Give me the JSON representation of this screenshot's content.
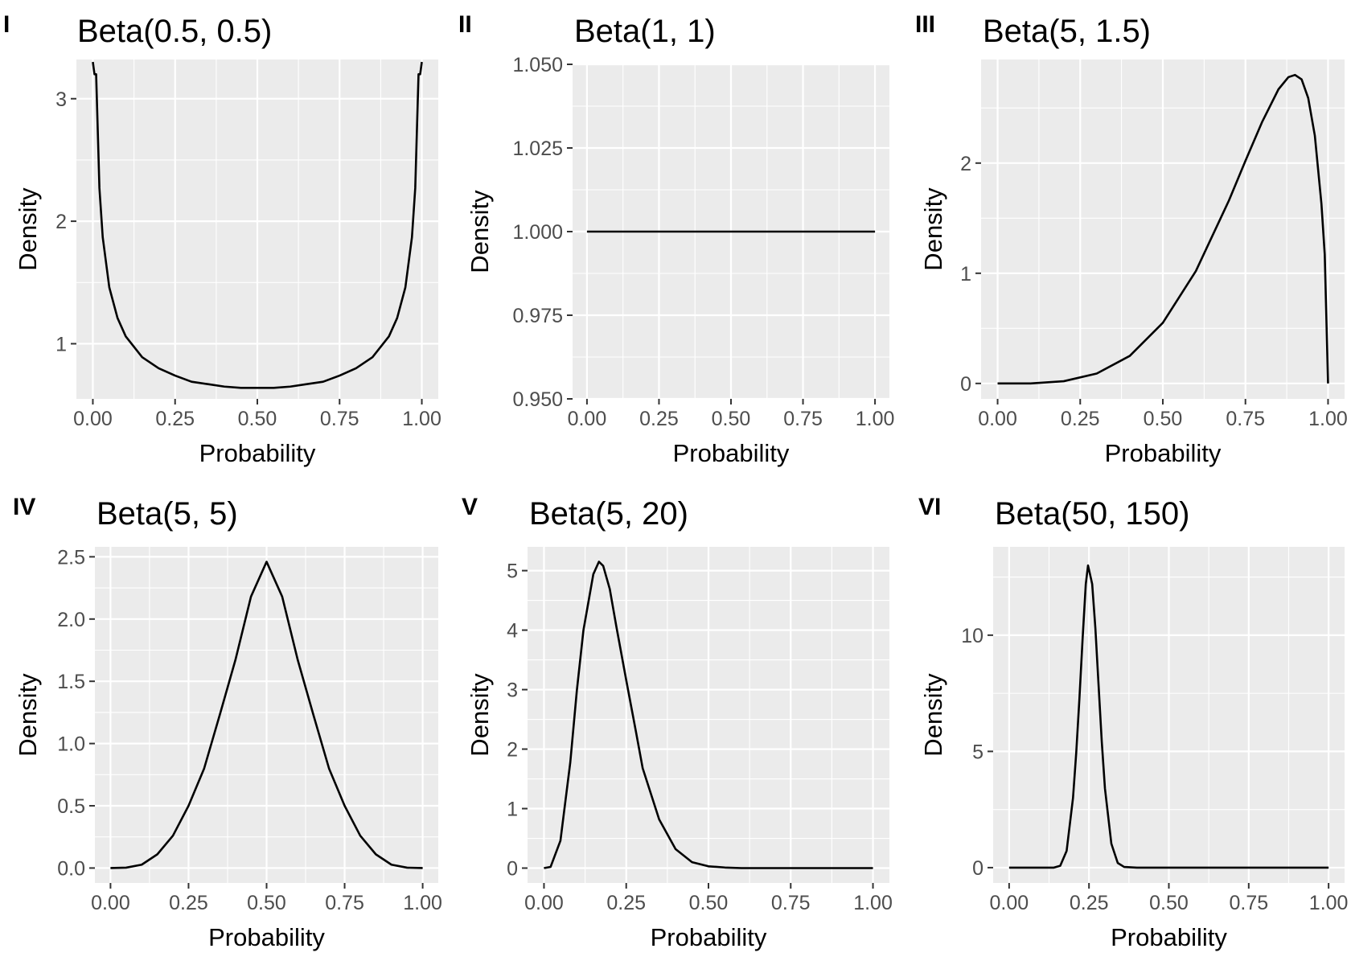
{
  "chart_data": [
    {
      "type": "line",
      "panel_label": "I",
      "title": "Beta(0.5, 0.5)",
      "distribution": {
        "alpha": 0.5,
        "beta": 0.5
      },
      "xlabel": "Probability",
      "ylabel": "Density",
      "xlim": [
        -0.05,
        1.05
      ],
      "ylim": [
        0.55,
        3.32
      ],
      "x_ticks": [
        0,
        0.25,
        0.5,
        0.75,
        1
      ],
      "x_tick_labels": [
        "0.00",
        "0.25",
        "0.50",
        "0.75",
        "1.00"
      ],
      "y_ticks": [
        1,
        2,
        3
      ],
      "y_tick_labels": [
        "1",
        "2",
        "3"
      ],
      "series": [
        {
          "x": [
            0,
            0.005,
            0.01,
            0.02,
            0.03,
            0.05,
            0.075,
            0.1,
            0.15,
            0.2,
            0.25,
            0.3,
            0.35,
            0.4,
            0.45,
            0.5,
            0.55,
            0.6,
            0.65,
            0.7,
            0.75,
            0.8,
            0.85,
            0.9,
            0.925,
            0.95,
            0.97,
            0.98,
            0.99,
            0.995,
            1
          ],
          "values": [
            3.3,
            3.2,
            3.2,
            2.27,
            1.87,
            1.46,
            1.21,
            1.06,
            0.89,
            0.8,
            0.74,
            0.69,
            0.67,
            0.65,
            0.64,
            0.64,
            0.64,
            0.65,
            0.67,
            0.69,
            0.74,
            0.8,
            0.89,
            1.06,
            1.21,
            1.46,
            1.87,
            2.27,
            3.2,
            3.2,
            3.3
          ]
        }
      ]
    },
    {
      "type": "line",
      "panel_label": "II",
      "title": "Beta(1, 1)",
      "distribution": {
        "alpha": 1,
        "beta": 1
      },
      "xlabel": "Probability",
      "ylabel": "Density",
      "xlim": [
        -0.05,
        1.05
      ],
      "ylim": [
        0.95,
        1.05
      ],
      "x_ticks": [
        0,
        0.25,
        0.5,
        0.75,
        1
      ],
      "x_tick_labels": [
        "0.00",
        "0.25",
        "0.50",
        "0.75",
        "1.00"
      ],
      "y_ticks": [
        0.95,
        0.975,
        1,
        1.025,
        1.05
      ],
      "y_tick_labels": [
        "0.950",
        "0.975",
        "1.000",
        "1.025",
        "1.050"
      ],
      "series": [
        {
          "x": [
            0,
            1
          ],
          "values": [
            1,
            1
          ]
        }
      ]
    },
    {
      "type": "line",
      "panel_label": "III",
      "title": "Beta(5, 1.5)",
      "distribution": {
        "alpha": 5,
        "beta": 1.5
      },
      "xlabel": "Probability",
      "ylabel": "Density",
      "xlim": [
        -0.05,
        1.05
      ],
      "ylim": [
        -0.14,
        2.94
      ],
      "x_ticks": [
        0,
        0.25,
        0.5,
        0.75,
        1
      ],
      "x_tick_labels": [
        "0.00",
        "0.25",
        "0.50",
        "0.75",
        "1.00"
      ],
      "y_ticks": [
        0,
        1,
        2
      ],
      "y_tick_labels": [
        "0",
        "1",
        "2"
      ],
      "series": [
        {
          "x": [
            0,
            0.1,
            0.2,
            0.3,
            0.4,
            0.5,
            0.6,
            0.7,
            0.75,
            0.8,
            0.85,
            0.88,
            0.9,
            0.92,
            0.94,
            0.96,
            0.98,
            0.99,
            1
          ],
          "values": [
            0,
            0,
            0.02,
            0.09,
            0.25,
            0.55,
            1.02,
            1.66,
            2.02,
            2.37,
            2.67,
            2.78,
            2.8,
            2.76,
            2.59,
            2.25,
            1.63,
            1.17,
            0
          ]
        }
      ]
    },
    {
      "type": "line",
      "panel_label": "IV",
      "title": "Beta(5, 5)",
      "distribution": {
        "alpha": 5,
        "beta": 5
      },
      "xlabel": "Probability",
      "ylabel": "Density",
      "xlim": [
        -0.05,
        1.05
      ],
      "ylim": [
        -0.12,
        2.58
      ],
      "x_ticks": [
        0,
        0.25,
        0.5,
        0.75,
        1
      ],
      "x_tick_labels": [
        "0.00",
        "0.25",
        "0.50",
        "0.75",
        "1.00"
      ],
      "y_ticks": [
        0,
        0.5,
        1,
        1.5,
        2,
        2.5
      ],
      "y_tick_labels": [
        "0.0",
        "0.5",
        "1.0",
        "1.5",
        "2.0",
        "2.5"
      ],
      "series": [
        {
          "x": [
            0,
            0.05,
            0.1,
            0.15,
            0.2,
            0.25,
            0.3,
            0.35,
            0.4,
            0.45,
            0.5,
            0.55,
            0.6,
            0.65,
            0.7,
            0.75,
            0.8,
            0.85,
            0.9,
            0.95,
            1
          ],
          "values": [
            0,
            0.003,
            0.027,
            0.11,
            0.26,
            0.5,
            0.8,
            1.23,
            1.67,
            2.18,
            2.46,
            2.18,
            1.67,
            1.23,
            0.8,
            0.5,
            0.26,
            0.11,
            0.027,
            0.003,
            0
          ]
        }
      ]
    },
    {
      "type": "line",
      "panel_label": "V",
      "title": "Beta(5, 20)",
      "distribution": {
        "alpha": 5,
        "beta": 20
      },
      "xlabel": "Probability",
      "ylabel": "Density",
      "xlim": [
        -0.05,
        1.05
      ],
      "ylim": [
        -0.25,
        5.4
      ],
      "x_ticks": [
        0,
        0.25,
        0.5,
        0.75,
        1
      ],
      "x_tick_labels": [
        "0.00",
        "0.25",
        "0.50",
        "0.75",
        "1.00"
      ],
      "y_ticks": [
        0,
        1,
        2,
        3,
        4,
        5
      ],
      "y_tick_labels": [
        "0",
        "1",
        "2",
        "3",
        "4",
        "5"
      ],
      "series": [
        {
          "x": [
            0,
            0.02,
            0.05,
            0.08,
            0.1,
            0.12,
            0.15,
            0.167,
            0.18,
            0.2,
            0.22,
            0.25,
            0.28,
            0.3,
            0.35,
            0.4,
            0.45,
            0.5,
            0.55,
            0.6,
            0.8,
            1
          ],
          "values": [
            0,
            0.02,
            0.46,
            1.78,
            2.99,
            4.0,
            4.94,
            5.15,
            5.08,
            4.69,
            4.06,
            3.16,
            2.28,
            1.68,
            0.82,
            0.32,
            0.1,
            0.03,
            0.01,
            0,
            0,
            0
          ]
        }
      ]
    },
    {
      "type": "line",
      "panel_label": "VI",
      "title": "Beta(50, 150)",
      "distribution": {
        "alpha": 50,
        "beta": 150
      },
      "xlabel": "Probability",
      "ylabel": "Density",
      "xlim": [
        -0.05,
        1.05
      ],
      "ylim": [
        -0.66,
        13.8
      ],
      "x_ticks": [
        0,
        0.25,
        0.5,
        0.75,
        1
      ],
      "x_tick_labels": [
        "0.00",
        "0.25",
        "0.50",
        "0.75",
        "1.00"
      ],
      "y_ticks": [
        0,
        5,
        10
      ],
      "y_tick_labels": [
        "0",
        "5",
        "10"
      ],
      "series": [
        {
          "x": [
            0,
            0.14,
            0.16,
            0.18,
            0.2,
            0.21,
            0.22,
            0.23,
            0.24,
            0.247,
            0.26,
            0.27,
            0.28,
            0.29,
            0.3,
            0.32,
            0.34,
            0.36,
            0.4,
            0.6,
            1
          ],
          "values": [
            0,
            0,
            0.08,
            0.72,
            3.0,
            4.93,
            7.26,
            9.84,
            12.2,
            13.0,
            12.2,
            10.3,
            7.85,
            5.42,
            3.4,
            1.03,
            0.2,
            0.03,
            0,
            0,
            0
          ]
        }
      ]
    }
  ]
}
